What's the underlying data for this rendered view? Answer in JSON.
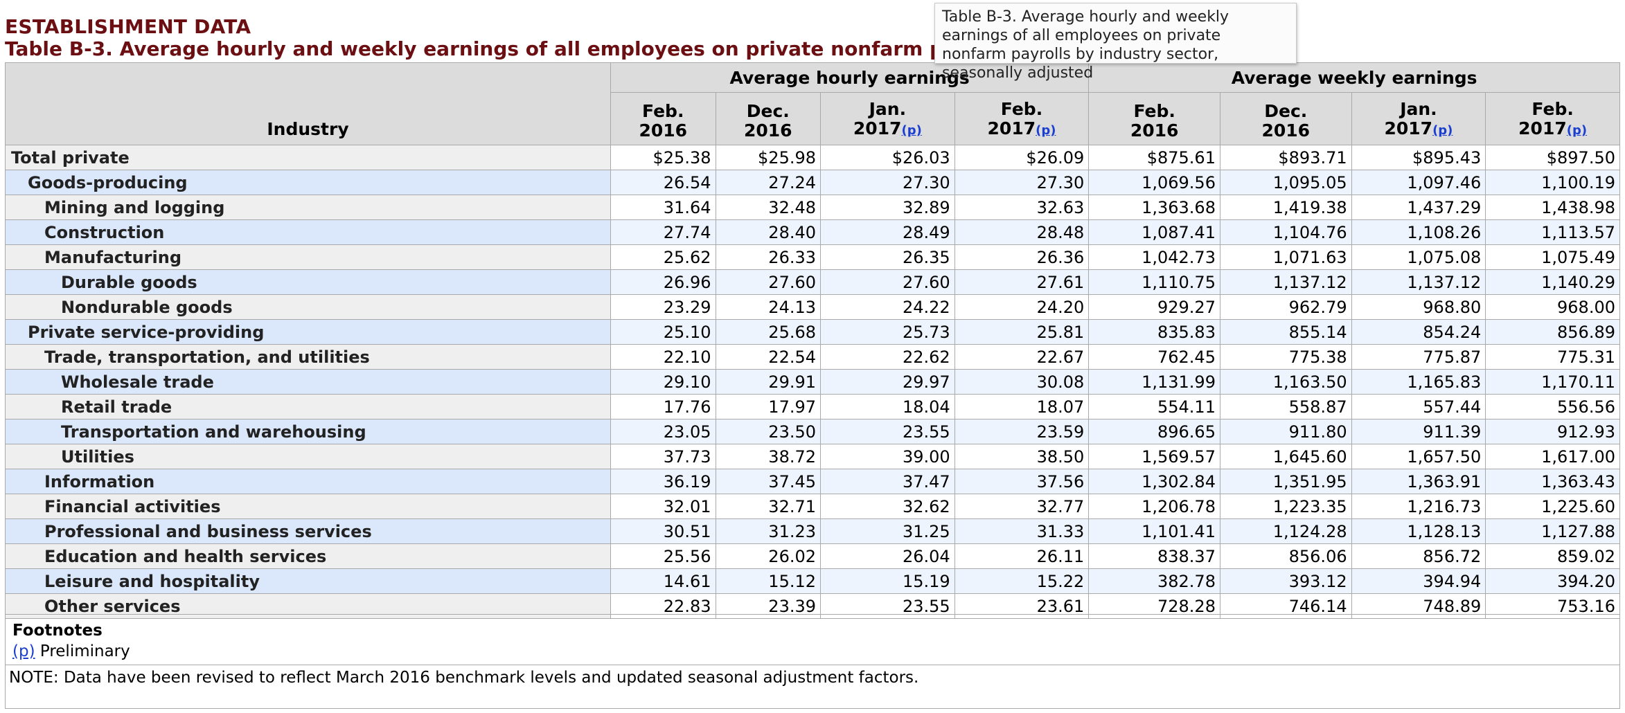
{
  "header": {
    "eyebrow": "ESTABLISHMENT DATA",
    "caption": "Table B-3. Average hourly and weekly earnings of all employees on private nonfarm payrolls by industry sector, seasonally adjusted"
  },
  "tooltip": {
    "text": "Table B-3. Average hourly and weekly earnings of all employees on private nonfarm payrolls by industry sector, seasonally adjusted"
  },
  "table": {
    "industry_header": "Industry",
    "groups": [
      "Average hourly earnings",
      "Average weekly earnings"
    ],
    "periods": [
      {
        "month": "Feb.",
        "year": "2016",
        "pref": ""
      },
      {
        "month": "Dec.",
        "year": "2016",
        "pref": ""
      },
      {
        "month": "Jan.",
        "year": "2017",
        "pref": "(p)"
      },
      {
        "month": "Feb.",
        "year": "2017",
        "pref": "(p)"
      },
      {
        "month": "Feb.",
        "year": "2016",
        "pref": ""
      },
      {
        "month": "Dec.",
        "year": "2016",
        "pref": ""
      },
      {
        "month": "Jan.",
        "year": "2017",
        "pref": "(p)"
      },
      {
        "month": "Feb.",
        "year": "2017",
        "pref": "(p)"
      }
    ],
    "rows": [
      {
        "label": "Total private",
        "level": 0,
        "values": [
          "$25.38",
          "$25.98",
          "$26.03",
          "$26.09",
          "$875.61",
          "$893.71",
          "$895.43",
          "$897.50"
        ]
      },
      {
        "label": "Goods-producing",
        "level": 1,
        "values": [
          "26.54",
          "27.24",
          "27.30",
          "27.30",
          "1,069.56",
          "1,095.05",
          "1,097.46",
          "1,100.19"
        ]
      },
      {
        "label": "Mining and logging",
        "level": 2,
        "values": [
          "31.64",
          "32.48",
          "32.89",
          "32.63",
          "1,363.68",
          "1,419.38",
          "1,437.29",
          "1,438.98"
        ]
      },
      {
        "label": "Construction",
        "level": 2,
        "values": [
          "27.74",
          "28.40",
          "28.49",
          "28.48",
          "1,087.41",
          "1,104.76",
          "1,108.26",
          "1,113.57"
        ]
      },
      {
        "label": "Manufacturing",
        "level": 2,
        "values": [
          "25.62",
          "26.33",
          "26.35",
          "26.36",
          "1,042.73",
          "1,071.63",
          "1,075.08",
          "1,075.49"
        ]
      },
      {
        "label": "Durable goods",
        "level": 3,
        "values": [
          "26.96",
          "27.60",
          "27.60",
          "27.61",
          "1,110.75",
          "1,137.12",
          "1,137.12",
          "1,140.29"
        ]
      },
      {
        "label": "Nondurable goods",
        "level": 3,
        "values": [
          "23.29",
          "24.13",
          "24.22",
          "24.20",
          "929.27",
          "962.79",
          "968.80",
          "968.00"
        ]
      },
      {
        "label": "Private service-providing",
        "level": 1,
        "values": [
          "25.10",
          "25.68",
          "25.73",
          "25.81",
          "835.83",
          "855.14",
          "854.24",
          "856.89"
        ]
      },
      {
        "label": "Trade, transportation, and utilities",
        "level": 2,
        "values": [
          "22.10",
          "22.54",
          "22.62",
          "22.67",
          "762.45",
          "775.38",
          "775.87",
          "775.31"
        ]
      },
      {
        "label": "Wholesale trade",
        "level": 3,
        "values": [
          "29.10",
          "29.91",
          "29.97",
          "30.08",
          "1,131.99",
          "1,163.50",
          "1,165.83",
          "1,170.11"
        ]
      },
      {
        "label": "Retail trade",
        "level": 3,
        "values": [
          "17.76",
          "17.97",
          "18.04",
          "18.07",
          "554.11",
          "558.87",
          "557.44",
          "556.56"
        ]
      },
      {
        "label": "Transportation and warehousing",
        "level": 3,
        "values": [
          "23.05",
          "23.50",
          "23.55",
          "23.59",
          "896.65",
          "911.80",
          "911.39",
          "912.93"
        ]
      },
      {
        "label": "Utilities",
        "level": 3,
        "values": [
          "37.73",
          "38.72",
          "39.00",
          "38.50",
          "1,569.57",
          "1,645.60",
          "1,657.50",
          "1,617.00"
        ]
      },
      {
        "label": "Information",
        "level": 2,
        "values": [
          "36.19",
          "37.45",
          "37.47",
          "37.56",
          "1,302.84",
          "1,351.95",
          "1,363.91",
          "1,363.43"
        ]
      },
      {
        "label": "Financial activities",
        "level": 2,
        "values": [
          "32.01",
          "32.71",
          "32.62",
          "32.77",
          "1,206.78",
          "1,223.35",
          "1,216.73",
          "1,225.60"
        ]
      },
      {
        "label": "Professional and business services",
        "level": 2,
        "values": [
          "30.51",
          "31.23",
          "31.25",
          "31.33",
          "1,101.41",
          "1,124.28",
          "1,128.13",
          "1,127.88"
        ]
      },
      {
        "label": "Education and health services",
        "level": 2,
        "values": [
          "25.56",
          "26.02",
          "26.04",
          "26.11",
          "838.37",
          "856.06",
          "856.72",
          "859.02"
        ]
      },
      {
        "label": "Leisure and hospitality",
        "level": 2,
        "values": [
          "14.61",
          "15.12",
          "15.19",
          "15.22",
          "382.78",
          "393.12",
          "394.94",
          "394.20"
        ]
      },
      {
        "label": "Other services",
        "level": 2,
        "values": [
          "22.83",
          "23.39",
          "23.55",
          "23.61",
          "728.28",
          "746.14",
          "748.89",
          "753.16"
        ]
      }
    ]
  },
  "footnotes": {
    "title": "Footnotes",
    "p_link": "(p)",
    "p_text": " Preliminary",
    "note": "NOTE: Data have been revised to reflect March 2016 benchmark levels and updated seasonal adjustment factors."
  }
}
